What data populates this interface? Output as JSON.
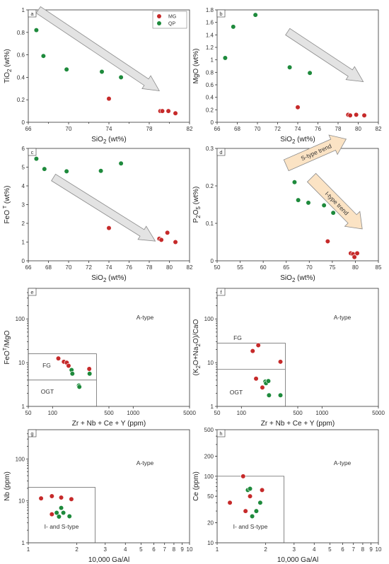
{
  "colors": {
    "MG": "#c62a2a",
    "QP": "#1e8a3c",
    "arrow_fill": "#e3e3e3",
    "arrow_orange": "#fbe3c4"
  },
  "chart_data": [
    {
      "type": "scatter",
      "panel": "a",
      "xlabel": "SiO2 (wt%)",
      "ylabel": "TiO2 (wt%)",
      "xlim": [
        66,
        82
      ],
      "ylim": [
        0,
        1.0
      ],
      "xticks": [
        66,
        70,
        74,
        78,
        82
      ],
      "xticks_minor": [
        68,
        72,
        76,
        80
      ],
      "yticks": [
        0,
        0.2,
        0.4,
        0.6,
        0.8,
        1.0
      ],
      "legend": {
        "placement": "top-right",
        "entries": [
          "MG",
          "QP"
        ]
      },
      "series": [
        {
          "name": "MG",
          "x": [
            74.0,
            79.1,
            79.3,
            79.9,
            80.6
          ],
          "y": [
            0.21,
            0.1,
            0.1,
            0.1,
            0.08
          ]
        },
        {
          "name": "QP",
          "x": [
            66.8,
            67.5,
            69.8,
            73.3,
            75.2
          ],
          "y": [
            0.82,
            0.59,
            0.47,
            0.45,
            0.4
          ]
        }
      ],
      "arrows": [
        {
          "style": "gray",
          "from": [
            67,
            1.0
          ],
          "to": [
            79,
            0.28
          ]
        }
      ]
    },
    {
      "type": "scatter",
      "panel": "b",
      "xlabel": "SiO2 (wt%)",
      "ylabel": "MgO (wt%)",
      "xlim": [
        66,
        82
      ],
      "ylim": [
        0,
        1.8
      ],
      "xticks": [
        66,
        68,
        70,
        72,
        74,
        76,
        78,
        80,
        82
      ],
      "yticks": [
        0,
        0.2,
        0.4,
        0.6,
        0.8,
        1.0,
        1.2,
        1.4,
        1.6,
        1.8
      ],
      "series": [
        {
          "name": "MG",
          "x": [
            74.0,
            79.0,
            79.2,
            79.8,
            80.6
          ],
          "y": [
            0.24,
            0.12,
            0.11,
            0.12,
            0.11
          ]
        },
        {
          "name": "QP",
          "x": [
            66.8,
            67.6,
            69.8,
            73.2,
            75.2
          ],
          "y": [
            1.03,
            1.53,
            1.72,
            0.88,
            0.79
          ]
        }
      ],
      "arrows": [
        {
          "style": "gray",
          "from": [
            73,
            1.45
          ],
          "to": [
            80.5,
            0.65
          ]
        }
      ]
    },
    {
      "type": "scatter",
      "panel": "c",
      "xlabel": "SiO2 (wt%)",
      "ylabel": "FeOT (wt%)",
      "xlim": [
        66,
        82
      ],
      "ylim": [
        0,
        6
      ],
      "xticks": [
        66,
        68,
        70,
        72,
        74,
        76,
        78,
        80,
        82
      ],
      "yticks": [
        0,
        1,
        2,
        3,
        4,
        5,
        6
      ],
      "series": [
        {
          "name": "MG",
          "x": [
            74.0,
            79.0,
            79.2,
            79.8,
            80.6
          ],
          "y": [
            1.75,
            1.18,
            1.12,
            1.5,
            1.0
          ]
        },
        {
          "name": "QP",
          "x": [
            66.8,
            67.6,
            69.8,
            73.2,
            75.2
          ],
          "y": [
            5.45,
            4.9,
            4.78,
            4.8,
            5.2
          ]
        }
      ],
      "arrows": [
        {
          "style": "gray",
          "from": [
            68.5,
            4.45
          ],
          "to": [
            78.6,
            1.05
          ]
        }
      ]
    },
    {
      "type": "scatter",
      "panel": "d",
      "xlabel": "SiO2 (wt%)",
      "ylabel": "P2O5 (wt%)",
      "xlim": [
        50,
        85
      ],
      "ylim": [
        0,
        0.3
      ],
      "xticks": [
        50,
        55,
        60,
        65,
        70,
        75,
        80,
        85
      ],
      "yticks": [
        0,
        0.1,
        0.2,
        0.3
      ],
      "series": [
        {
          "name": "MG",
          "x": [
            74.0,
            79.0,
            79.5,
            79.8,
            80.4
          ],
          "y": [
            0.052,
            0.02,
            0.018,
            0.01,
            0.02
          ]
        },
        {
          "name": "QP",
          "x": [
            66.8,
            67.6,
            69.8,
            73.2,
            75.2
          ],
          "y": [
            0.21,
            0.162,
            0.155,
            0.148,
            0.128
          ]
        }
      ],
      "arrows": [
        {
          "style": "orange",
          "label": "S-type trend",
          "from": [
            65,
            0.255
          ],
          "to": [
            78,
            0.325
          ]
        },
        {
          "style": "orange",
          "label": "I-type trend",
          "from": [
            70.5,
            0.222
          ],
          "to": [
            81.5,
            0.085
          ]
        }
      ]
    },
    {
      "type": "scatter",
      "panel": "e",
      "xlabel": "Zr + Nb + Ce + Y (ppm)",
      "ylabel": "FeOT/MgO",
      "xscale": "log",
      "yscale": "log",
      "xlim": [
        50,
        5000
      ],
      "ylim": [
        1,
        500
      ],
      "xticks": [
        50,
        100,
        500,
        1000,
        5000
      ],
      "yticks": [
        1,
        10,
        100
      ],
      "series": [
        {
          "name": "MG",
          "x": [
            118,
            138,
            150,
            158,
            285
          ],
          "y": [
            12.5,
            10.5,
            10.0,
            8.5,
            7.2
          ]
        },
        {
          "name": "QP",
          "x": [
            172,
            176,
            212,
            215,
            288
          ],
          "y": [
            6.8,
            5.6,
            3.0,
            2.8,
            5.6
          ]
        }
      ],
      "boxes": [
        [
          50,
          1,
          350,
          16
        ],
        [
          50,
          4,
          350,
          4
        ]
      ],
      "annotations": [
        "A-type",
        "FG",
        "OGT"
      ]
    },
    {
      "type": "scatter",
      "panel": "f",
      "xlabel": "Zr + Nb + Ce + Y (ppm)",
      "ylabel": "(K2O+Na2O)/CaO",
      "xscale": "log",
      "yscale": "log",
      "xlim": [
        50,
        5000
      ],
      "ylim": [
        1,
        500
      ],
      "xticks": [
        50,
        100,
        500,
        1000,
        5000
      ],
      "yticks": [
        1,
        10,
        100
      ],
      "series": [
        {
          "name": "MG",
          "x": [
            138,
            162,
            152,
            182,
            305
          ],
          "y": [
            18.5,
            25.0,
            4.3,
            2.7,
            10.5
          ]
        },
        {
          "name": "QP",
          "x": [
            198,
            202,
            216,
            220,
            305
          ],
          "y": [
            3.7,
            3.4,
            3.8,
            1.8,
            1.8
          ]
        }
      ],
      "boxes": [
        [
          50,
          1,
          350,
          28
        ],
        [
          50,
          7,
          350,
          7
        ]
      ],
      "annotations": [
        "A-type",
        "FG",
        "OGT"
      ]
    },
    {
      "type": "scatter",
      "panel": "g",
      "xlabel": "10,000 Ga/Al",
      "ylabel": "Nb (ppm)",
      "xscale": "log",
      "yscale": "log",
      "xlim": [
        1,
        10
      ],
      "ylim": [
        1,
        500
      ],
      "xticks": [
        1,
        2,
        3,
        4,
        5,
        6,
        7,
        8,
        9,
        10
      ],
      "yticks": [
        1,
        10,
        100
      ],
      "series": [
        {
          "name": "MG",
          "x": [
            1.2,
            1.4,
            1.6,
            1.85,
            1.4
          ],
          "y": [
            11.5,
            13.0,
            12.0,
            11.0,
            4.8
          ]
        },
        {
          "name": "QP",
          "x": [
            1.5,
            1.55,
            1.6,
            1.65,
            1.8
          ],
          "y": [
            5.2,
            4.2,
            6.8,
            5.2,
            4.3
          ]
        }
      ],
      "boxes": [
        [
          1,
          1,
          2.6,
          21
        ]
      ],
      "annotations": [
        "A-type",
        "I- and S-type"
      ]
    },
    {
      "type": "scatter",
      "panel": "h",
      "xlabel": "10,000 Ga/Al",
      "ylabel": "Ce (ppm)",
      "xscale": "log",
      "yscale": "log",
      "xlim": [
        1,
        10
      ],
      "ylim": [
        10,
        500
      ],
      "xticks": [
        1,
        2,
        3,
        4,
        5,
        6,
        7,
        8,
        9,
        10
      ],
      "yticks": [
        10,
        20,
        50,
        100,
        200,
        500
      ],
      "series": [
        {
          "name": "MG",
          "x": [
            1.2,
            1.45,
            1.5,
            1.6,
            1.9
          ],
          "y": [
            40,
            100,
            30,
            50,
            62
          ]
        },
        {
          "name": "QP",
          "x": [
            1.55,
            1.6,
            1.65,
            1.75,
            1.85
          ],
          "y": [
            62,
            65,
            25,
            30,
            40
          ]
        }
      ],
      "boxes": [
        [
          1,
          10,
          2.6,
          100
        ]
      ],
      "annotations": [
        "A-type",
        "I- and S-type"
      ]
    }
  ]
}
